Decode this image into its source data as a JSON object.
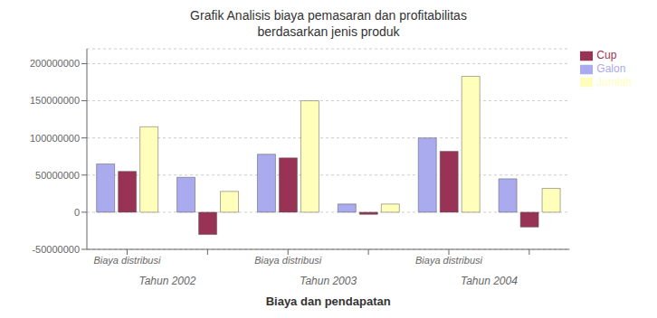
{
  "chart_data": {
    "type": "bar",
    "title": "Grafik Analisis biaya pemasaran dan profitabilitas\nberdasarkan jenis produk",
    "xlabel": "Biaya dan pendapatan",
    "categories": [
      "Biaya distribusi",
      null,
      "Biaya distribusi",
      null,
      "Biaya distribusi",
      null
    ],
    "annotations": [
      "Tahun 2002",
      "Tahun 2003",
      "Tahun 2004"
    ],
    "series": [
      {
        "name": "Galon",
        "color": "#aaaaee",
        "values": [
          65000000,
          47000000,
          78000000,
          11000000,
          100000000,
          45000000
        ]
      },
      {
        "name": "Cup",
        "color": "#993355",
        "values": [
          55000000,
          -30000000,
          73000000,
          -3000000,
          82000000,
          -20000000
        ]
      },
      {
        "name": "Jumlah",
        "color": "#ffffbb",
        "values": [
          115000000,
          28000000,
          150000000,
          11000000,
          183000000,
          32000000
        ]
      }
    ],
    "ylim": [
      -50000000,
      220000000
    ],
    "yticks": [
      -50000000,
      0,
      50000000,
      100000000,
      150000000,
      200000000
    ],
    "grid": true,
    "legend": "upper right"
  }
}
